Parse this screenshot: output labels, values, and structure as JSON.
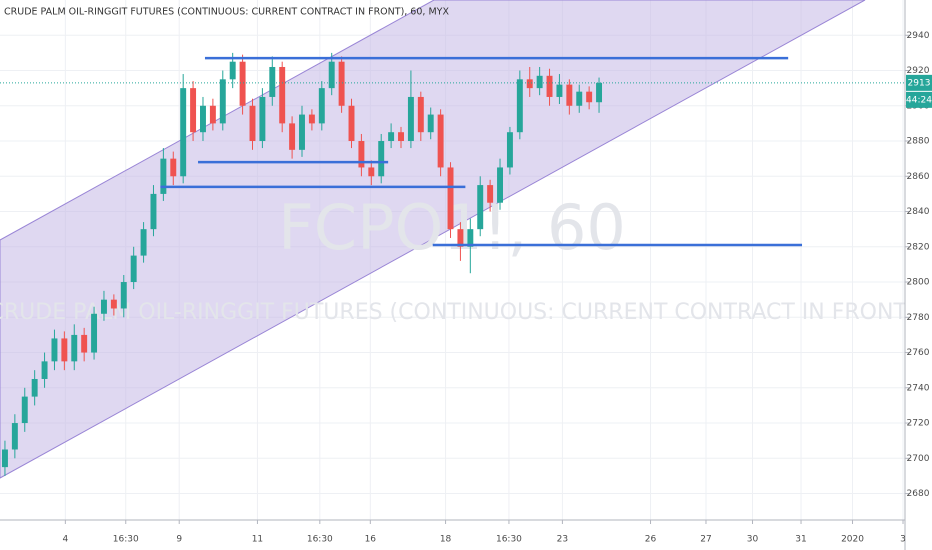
{
  "chart_data": {
    "type": "candlestick",
    "title": "CRUDE PALM OIL-RINGGIT FUTURES (CONTINUOUS: CURRENT CONTRACT IN FRONT), 60, MYX",
    "watermark_symbol": "FCPO1!, 60",
    "watermark_name": "CRUDE PALM OIL-RINGGIT FUTURES (CONTINUOUS: CURRENT CONTRACT IN FRONT)",
    "open": [
      2695,
      2705,
      2720,
      2735,
      2745,
      2755,
      2768,
      2755,
      2770,
      2760,
      2782,
      2790,
      2785,
      2800,
      2815,
      2830,
      2850,
      2870,
      2860,
      2910,
      2885,
      2900,
      2890,
      2915,
      2925,
      2900,
      2880,
      2905,
      2922,
      2890,
      2875,
      2895,
      2890,
      2910,
      2925,
      2900,
      2880,
      2865,
      2860,
      2880,
      2885,
      2880,
      2905,
      2885,
      2895,
      2865,
      2830,
      2820,
      2830,
      2855,
      2845,
      2865,
      2885,
      2915,
      2910,
      2917,
      2905,
      2912,
      2900,
      2908,
      2902
    ],
    "high": [
      2710,
      2725,
      2740,
      2750,
      2760,
      2773,
      2772,
      2776,
      2774,
      2786,
      2795,
      2793,
      2804,
      2820,
      2834,
      2855,
      2876,
      2874,
      2918,
      2914,
      2905,
      2904,
      2920,
      2930,
      2929,
      2904,
      2910,
      2928,
      2925,
      2894,
      2900,
      2898,
      2914,
      2930,
      2928,
      2904,
      2884,
      2869,
      2884,
      2890,
      2888,
      2920,
      2908,
      2899,
      2898,
      2868,
      2834,
      2836,
      2860,
      2858,
      2870,
      2888,
      2920,
      2922,
      2922,
      2921,
      2918,
      2915,
      2912,
      2911,
      2916
    ],
    "low": [
      2690,
      2700,
      2715,
      2730,
      2740,
      2750,
      2750,
      2750,
      2755,
      2756,
      2778,
      2781,
      2780,
      2796,
      2811,
      2826,
      2846,
      2855,
      2856,
      2880,
      2880,
      2886,
      2886,
      2910,
      2895,
      2875,
      2876,
      2900,
      2885,
      2870,
      2871,
      2886,
      2886,
      2906,
      2896,
      2876,
      2860,
      2855,
      2856,
      2876,
      2876,
      2876,
      2880,
      2881,
      2860,
      2825,
      2812,
      2805,
      2826,
      2840,
      2841,
      2861,
      2881,
      2905,
      2906,
      2900,
      2901,
      2895,
      2896,
      2898,
      2896
    ],
    "close": [
      2705,
      2720,
      2735,
      2745,
      2755,
      2768,
      2755,
      2770,
      2760,
      2782,
      2790,
      2785,
      2800,
      2815,
      2830,
      2850,
      2870,
      2860,
      2910,
      2885,
      2900,
      2890,
      2915,
      2925,
      2900,
      2880,
      2905,
      2922,
      2890,
      2875,
      2895,
      2890,
      2910,
      2925,
      2900,
      2880,
      2865,
      2860,
      2880,
      2885,
      2880,
      2905,
      2885,
      2895,
      2865,
      2830,
      2820,
      2830,
      2855,
      2845,
      2865,
      2885,
      2915,
      2910,
      2917,
      2905,
      2912,
      2900,
      2908,
      2902,
      2913
    ],
    "up_color": "#26a69a",
    "down_color": "#ef5350",
    "xlim": [
      -0.5,
      90.9
    ],
    "xticks": [
      {
        "value": 6.1,
        "label": "4"
      },
      {
        "value": 12.2,
        "label": "16:30"
      },
      {
        "value": 17.6,
        "label": "9"
      },
      {
        "value": 25.5,
        "label": "11"
      },
      {
        "value": 31.8,
        "label": "16:30"
      },
      {
        "value": 36.9,
        "label": "16"
      },
      {
        "value": 44.5,
        "label": "18"
      },
      {
        "value": 50.9,
        "label": "16:30"
      },
      {
        "value": 56.3,
        "label": "23"
      },
      {
        "value": 65.2,
        "label": "26"
      },
      {
        "value": 70.8,
        "label": "27"
      },
      {
        "value": 75.5,
        "label": "30"
      },
      {
        "value": 80.4,
        "label": "31"
      },
      {
        "value": 85.6,
        "label": "2020"
      },
      {
        "value": 90.7,
        "label": "3"
      }
    ],
    "ylim": [
      2665,
      2960
    ],
    "yticks": [
      2680,
      2700,
      2720,
      2740,
      2760,
      2780,
      2800,
      2820,
      2840,
      2860,
      2880,
      2900,
      2920,
      2940
    ],
    "grid": true,
    "levels": [
      {
        "price": 2927,
        "from": 20.2,
        "to": 79.1
      },
      {
        "price": 2868,
        "from": 19.5,
        "to": 38.7
      },
      {
        "price": 2854,
        "from": 15.7,
        "to": 46.5
      },
      {
        "price": 2821,
        "from": 43.2,
        "to": 80.5
      }
    ],
    "level_color": "#3a6fd8",
    "last_price": 2913,
    "countdown": "44:24"
  }
}
